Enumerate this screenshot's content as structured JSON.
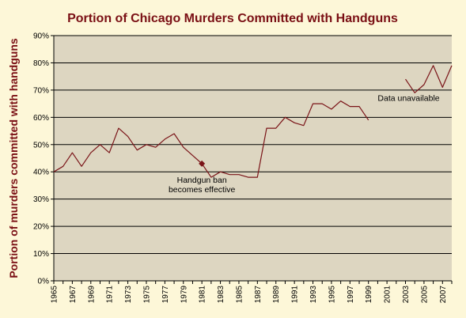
{
  "chart_data": {
    "type": "line",
    "title": "Portion of Chicago Murders Committed with Handguns",
    "xlabel": "",
    "ylabel": "Portion of murders committed with handguns",
    "xlim": [
      1965,
      2008
    ],
    "ylim": [
      0,
      90
    ],
    "y_ticks": [
      {
        "value": 0,
        "label": "0%"
      },
      {
        "value": 10,
        "label": "10%"
      },
      {
        "value": 20,
        "label": "20%"
      },
      {
        "value": 30,
        "label": "30%"
      },
      {
        "value": 40,
        "label": "40%"
      },
      {
        "value": 50,
        "label": "50%"
      },
      {
        "value": 60,
        "label": "60%"
      },
      {
        "value": 70,
        "label": "70%"
      },
      {
        "value": 80,
        "label": "80%"
      },
      {
        "value": 90,
        "label": "90%"
      }
    ],
    "x_ticks": [
      {
        "value": 1965,
        "label": "1965"
      },
      {
        "value": 1967,
        "label": "1967"
      },
      {
        "value": 1969,
        "label": "1969"
      },
      {
        "value": 1971,
        "label": "1971"
      },
      {
        "value": 1973,
        "label": "1973"
      },
      {
        "value": 1975,
        "label": "1975"
      },
      {
        "value": 1977,
        "label": "1977"
      },
      {
        "value": 1979,
        "label": "1979"
      },
      {
        "value": 1981,
        "label": "1981"
      },
      {
        "value": 1983,
        "label": "1983"
      },
      {
        "value": 1985,
        "label": "1985"
      },
      {
        "value": 1987,
        "label": "1987"
      },
      {
        "value": 1989,
        "label": "1989"
      },
      {
        "value": 1991,
        "label": "1991"
      },
      {
        "value": 1993,
        "label": "1993"
      },
      {
        "value": 1995,
        "label": "1995"
      },
      {
        "value": 1997,
        "label": "1997"
      },
      {
        "value": 1999,
        "label": "1999"
      },
      {
        "value": 2001,
        "label": "2001"
      },
      {
        "value": 2003,
        "label": "2003"
      },
      {
        "value": 2005,
        "label": "2005"
      },
      {
        "value": 2007,
        "label": "2007"
      }
    ],
    "grid": true,
    "legend": "none",
    "series": [
      {
        "color": "#7a1418",
        "segments": [
          [
            [
              1965,
              40
            ],
            [
              1966,
              42
            ],
            [
              1967,
              47
            ],
            [
              1968,
              42
            ],
            [
              1969,
              47
            ],
            [
              1970,
              50
            ],
            [
              1971,
              47
            ],
            [
              1972,
              56
            ],
            [
              1973,
              53
            ],
            [
              1974,
              48
            ],
            [
              1975,
              50
            ],
            [
              1976,
              49
            ],
            [
              1977,
              52
            ],
            [
              1978,
              54
            ],
            [
              1979,
              49
            ],
            [
              1980,
              46
            ],
            [
              1981,
              43
            ],
            [
              1982,
              38
            ],
            [
              1983,
              40
            ],
            [
              1984,
              39
            ],
            [
              1985,
              39
            ],
            [
              1986,
              38
            ],
            [
              1987,
              38
            ],
            [
              1988,
              56
            ],
            [
              1989,
              56
            ],
            [
              1990,
              60
            ],
            [
              1991,
              58
            ],
            [
              1992,
              57
            ],
            [
              1993,
              65
            ],
            [
              1994,
              65
            ],
            [
              1995,
              63
            ],
            [
              1996,
              66
            ],
            [
              1997,
              64
            ],
            [
              1998,
              64
            ],
            [
              1999,
              59
            ]
          ],
          [
            [
              2003,
              74
            ],
            [
              2004,
              69
            ],
            [
              2005,
              72
            ],
            [
              2006,
              79
            ],
            [
              2007,
              71
            ],
            [
              2008,
              79
            ]
          ]
        ]
      }
    ],
    "markers": [
      {
        "x": 1981,
        "y": 43,
        "shape": "diamond",
        "color": "#7a1418"
      }
    ],
    "annotations": [
      {
        "lines": [
          "Handgun ban",
          "becomes effective"
        ],
        "x": 1981,
        "y": 36,
        "anchor": "middle"
      },
      {
        "lines": [
          "Data unavailable"
        ],
        "x": 2000,
        "y": 66,
        "anchor": "start"
      }
    ],
    "colors": {
      "plot_background": "#ddd6c1",
      "page_background": "#fdf7d8",
      "title": "#7a0f14",
      "gridline": "#000000"
    }
  }
}
